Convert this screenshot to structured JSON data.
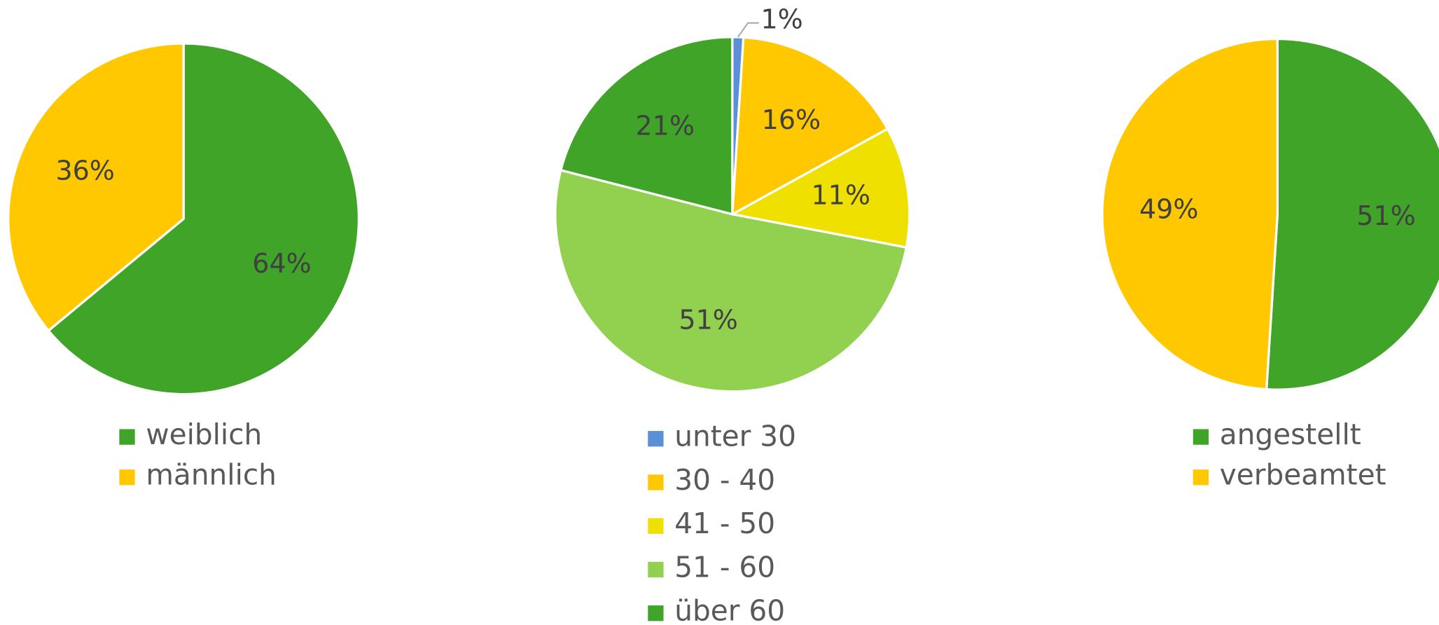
{
  "chart_data": [
    {
      "type": "pie",
      "categories": [
        "weiblich",
        "männlich"
      ],
      "values": [
        64,
        36
      ],
      "value_labels": [
        "64%",
        "36%"
      ],
      "colors": [
        "#3fa428",
        "#ffc800"
      ]
    },
    {
      "type": "pie",
      "categories": [
        "unter 30",
        "30 - 40",
        "41 - 50",
        "51 - 60",
        "über 60"
      ],
      "values": [
        1,
        16,
        11,
        51,
        21
      ],
      "value_labels": [
        "1%",
        "16%",
        "11%",
        "51%",
        "21%"
      ],
      "colors": [
        "#5b8fd8",
        "#ffc800",
        "#f0e000",
        "#92d050",
        "#3fa428"
      ]
    },
    {
      "type": "pie",
      "categories": [
        "angestellt",
        "verbeamtet"
      ],
      "values": [
        51,
        49
      ],
      "value_labels": [
        "51%",
        "49%"
      ],
      "colors": [
        "#3fa428",
        "#ffc800"
      ]
    }
  ]
}
